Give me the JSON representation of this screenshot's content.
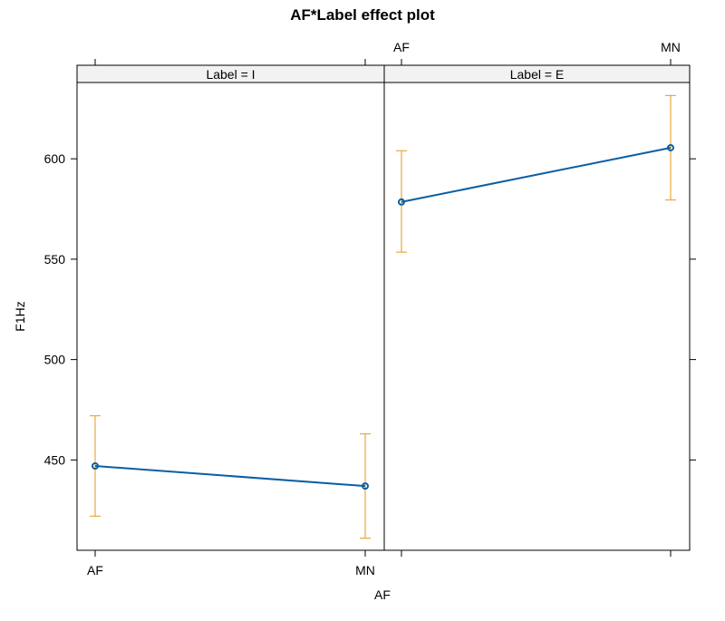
{
  "chart_data": {
    "type": "line",
    "title": "AF*Label effect plot",
    "xlabel": "AF",
    "ylabel": "F1Hz",
    "categories": [
      "AF",
      "MN"
    ],
    "ylim": [
      405,
      638
    ],
    "yticks": [
      450,
      500,
      550,
      600
    ],
    "grid": false,
    "colors": {
      "line": "#0a5ea4",
      "errorbar": "#e8a93a",
      "strip_fill": "#f2f2f2",
      "frame": "#000000"
    },
    "panels": [
      {
        "strip_label": "Label = I",
        "values": [
          447,
          437
        ],
        "lower": [
          422,
          411
        ],
        "upper": [
          472,
          463
        ]
      },
      {
        "strip_label": "Label = E",
        "values": [
          578.5,
          605.5
        ],
        "lower": [
          553.5,
          579.5
        ],
        "upper": [
          604,
          631.5
        ]
      }
    ]
  }
}
